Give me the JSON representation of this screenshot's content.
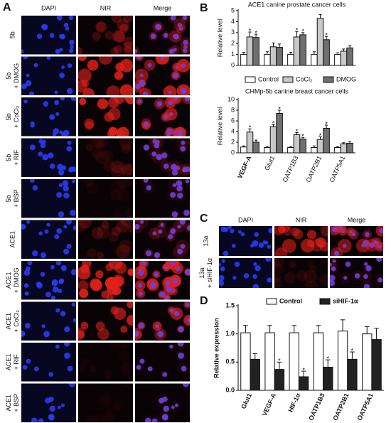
{
  "panel_labels": [
    "A",
    "B",
    "C",
    "D"
  ],
  "panel_a": {
    "columns": [
      "DAPI",
      "NIR",
      "Merge"
    ],
    "rows": [
      [
        "5b"
      ],
      [
        "5b",
        "+ DMOG"
      ],
      [
        "5b",
        "+ CoCl₂"
      ],
      [
        "5b",
        "+ RIF"
      ],
      [
        "5b",
        "+ BSP"
      ],
      [
        "ACE1"
      ],
      [
        "ACE1",
        "+ DMOG"
      ],
      [
        "ACE1",
        "+ CoCl₂"
      ],
      [
        "ACE1",
        "+ RIF"
      ],
      [
        "ACE1",
        "+ BSP"
      ]
    ]
  },
  "panel_c": {
    "columns": [
      "DAPI",
      "NIR",
      "Merge"
    ],
    "rows": [
      [
        "13a"
      ],
      [
        "13a",
        "+ siHIF-1α"
      ]
    ]
  },
  "chart_data": [
    {
      "type": "bar",
      "title": "ACE1 canine prostate cancer cells",
      "y_label": "Relative level",
      "ylim": [
        0,
        5
      ],
      "yticks": [
        0,
        1,
        2,
        3,
        4,
        5
      ],
      "series": [
        {
          "name": "Control",
          "color": "#ffffff",
          "values": [
            1.0,
            1.0,
            1.0,
            1.0,
            1.0
          ],
          "errors": [
            0.2,
            0.25,
            0.2,
            0.25,
            0.15
          ]
        },
        {
          "name": "CoCl₂",
          "color": "#c8c8c8",
          "values": [
            2.6,
            1.7,
            2.6,
            4.3,
            1.3
          ],
          "errors": [
            0.45,
            0.35,
            0.5,
            0.35,
            0.2
          ]
        },
        {
          "name": "DMOG",
          "color": "#707070",
          "values": [
            2.55,
            1.65,
            2.8,
            2.35,
            1.6
          ],
          "errors": [
            0.3,
            0.3,
            0.2,
            0.3,
            0.2
          ]
        }
      ],
      "annotations": [
        {
          "text": "*",
          "series": 1,
          "index": 0
        },
        {
          "text": "*",
          "series": 2,
          "index": 0
        },
        {
          "text": "*",
          "series": 1,
          "index": 2
        },
        {
          "text": "*",
          "series": 2,
          "index": 2
        },
        {
          "text": "*",
          "series": 2,
          "index": 3
        }
      ]
    },
    {
      "type": "bar",
      "title": "CHMp-5b canine breast cancer cells",
      "y_label": "Relative level",
      "categories": [
        "VEGF-A",
        "Glut1",
        "OATP1B3",
        "OATP2B1",
        "OATP5A1"
      ],
      "ylim": [
        0,
        10
      ],
      "yticks": [
        0,
        2,
        4,
        6,
        8,
        10
      ],
      "series": [
        {
          "name": "Control",
          "color": "#ffffff",
          "values": [
            1.1,
            1.0,
            1.0,
            1.0,
            1.0
          ],
          "errors": [
            0.2,
            0.25,
            0.2,
            0.3,
            0.15
          ]
        },
        {
          "name": "CoCl₂",
          "color": "#c8c8c8",
          "values": [
            3.9,
            4.9,
            3.4,
            2.5,
            1.7
          ],
          "errors": [
            0.6,
            0.4,
            0.4,
            0.5,
            0.2
          ]
        },
        {
          "name": "DMOG",
          "color": "#707070",
          "values": [
            2.0,
            7.4,
            2.6,
            4.6,
            1.8
          ],
          "errors": [
            0.4,
            0.6,
            0.3,
            0.6,
            0.3
          ]
        }
      ],
      "annotations": [
        {
          "text": "*",
          "series": 1,
          "index": 0
        },
        {
          "text": "*",
          "series": 1,
          "index": 1
        },
        {
          "text": "*",
          "series": 2,
          "index": 1
        },
        {
          "text": "*",
          "series": 1,
          "index": 2
        },
        {
          "text": "*",
          "series": 2,
          "index": 2
        },
        {
          "text": "*",
          "series": 1,
          "index": 3
        },
        {
          "text": "*",
          "series": 2,
          "index": 3
        }
      ]
    },
    {
      "type": "bar",
      "y_label": "Relative expression",
      "categories": [
        "Glut1",
        "VEGF-A",
        "HIF-1α",
        "OATP1B3",
        "OATP2B1",
        "OATP5A1"
      ],
      "ylim": [
        0,
        1.5
      ],
      "yticks": [
        {
          "value": 0,
          "label": "0.0"
        },
        0.5,
        {
          "value": 1,
          "label": "1.0"
        },
        1.5
      ],
      "series": [
        {
          "name": "Control",
          "color": "#ffffff",
          "values": [
            1.02,
            1.02,
            1.02,
            1.02,
            1.05,
            1.0
          ],
          "errors": [
            0.13,
            0.13,
            0.13,
            0.13,
            0.2,
            0.13
          ]
        },
        {
          "name": "siHIF-1α",
          "color": "#222222",
          "values": [
            0.55,
            0.37,
            0.24,
            0.41,
            0.55,
            0.9
          ],
          "errors": [
            0.1,
            0.13,
            0.1,
            0.13,
            0.13,
            0.2
          ]
        }
      ],
      "annotations": [
        {
          "text": "*",
          "series": 1,
          "index": 1
        },
        {
          "text": "*",
          "series": 1,
          "index": 2
        },
        {
          "text": "*",
          "series": 1,
          "index": 3
        },
        {
          "text": "*",
          "series": 1,
          "index": 4
        }
      ]
    }
  ]
}
